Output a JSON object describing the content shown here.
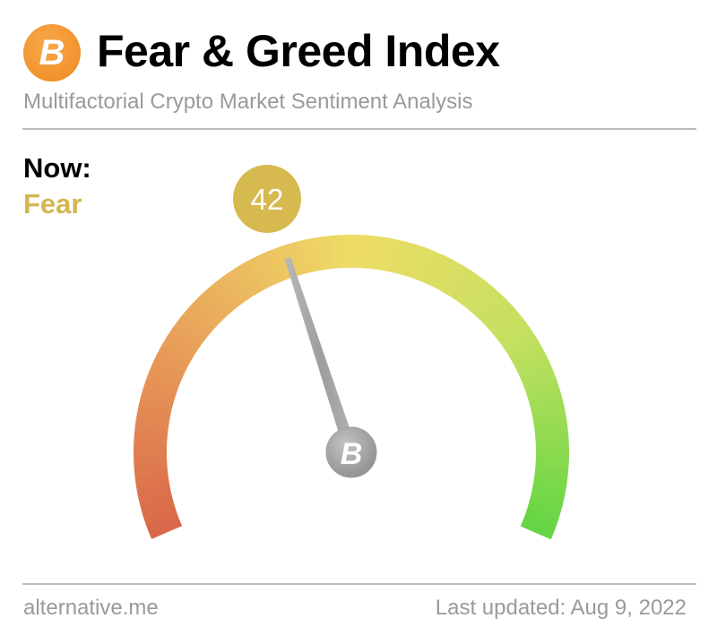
{
  "header": {
    "logo_icon": "bitcoin-icon",
    "logo_glyph": "B",
    "title": "Fear & Greed Index",
    "subtitle": "Multifactorial Crypto Market Sentiment Analysis"
  },
  "now": {
    "label": "Now:",
    "classification": "Fear",
    "classification_color": "#d3b64f"
  },
  "chart_data": {
    "type": "gauge",
    "value": 42,
    "value_label": "42",
    "range": [
      0,
      100
    ],
    "bubble_color": "#d6b94f",
    "gradient_colors": [
      "#d9674a",
      "#e9a05a",
      "#eedc66",
      "#c4e060",
      "#64d544"
    ],
    "needle_hub_icon": "bitcoin-icon",
    "needle_hub_glyph": "B"
  },
  "footer": {
    "source": "alternative.me",
    "last_updated": "Last updated: Aug 9, 2022"
  }
}
